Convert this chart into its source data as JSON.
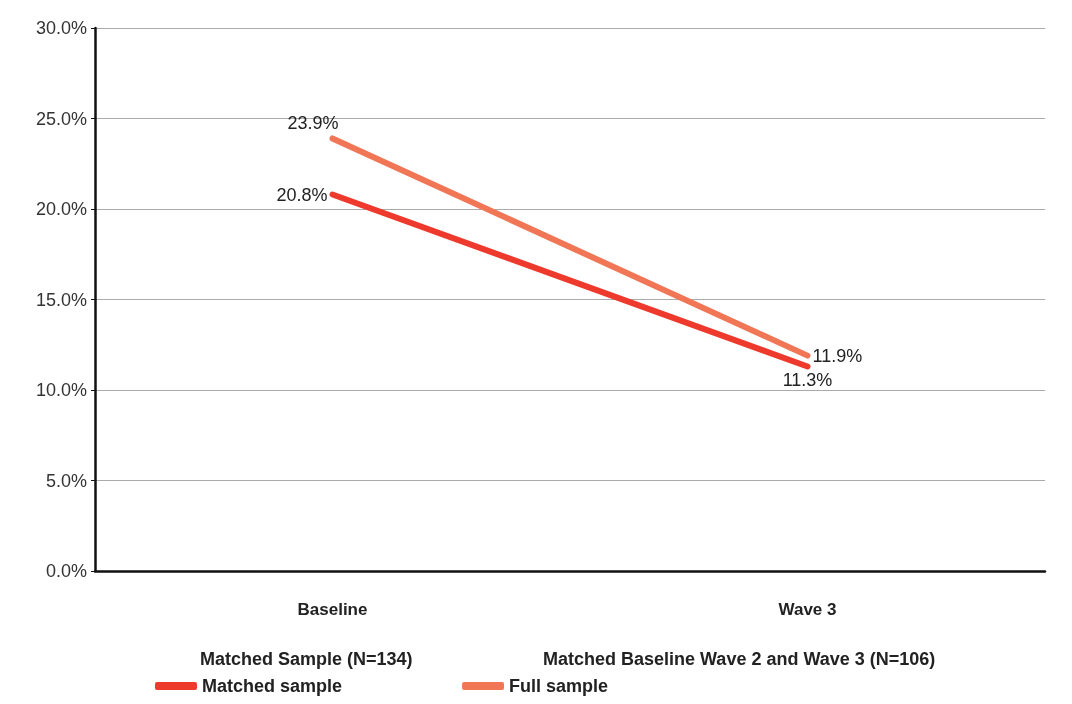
{
  "chart_data": {
    "type": "line",
    "categories": [
      "Baseline",
      "Wave 3"
    ],
    "series": [
      {
        "name": "Matched sample",
        "color": "#ee3a2d",
        "values": [
          20.8,
          11.3
        ],
        "value_labels": [
          "20.8%",
          "11.3%"
        ]
      },
      {
        "name": "Full sample",
        "color": "#f07656",
        "values": [
          23.9,
          11.9
        ],
        "value_labels": [
          "23.9%",
          "11.9%"
        ]
      }
    ],
    "ylim": [
      0,
      30
    ],
    "yticks": [
      {
        "value": 0,
        "label": "0.0%"
      },
      {
        "value": 5,
        "label": "5.0%"
      },
      {
        "value": 10,
        "label": "10.0%"
      },
      {
        "value": 15,
        "label": "15.0%"
      },
      {
        "value": 20,
        "label": "20.0%"
      },
      {
        "value": 25,
        "label": "25.0%"
      },
      {
        "value": 30,
        "label": "30.0%"
      }
    ],
    "annotations": [
      "Matched Sample (N=134)",
      "Matched Baseline Wave 2 and Wave 3 (N=106)"
    ],
    "grid": "y",
    "legend": "bottom",
    "marker": "none",
    "line_style": "solid"
  }
}
